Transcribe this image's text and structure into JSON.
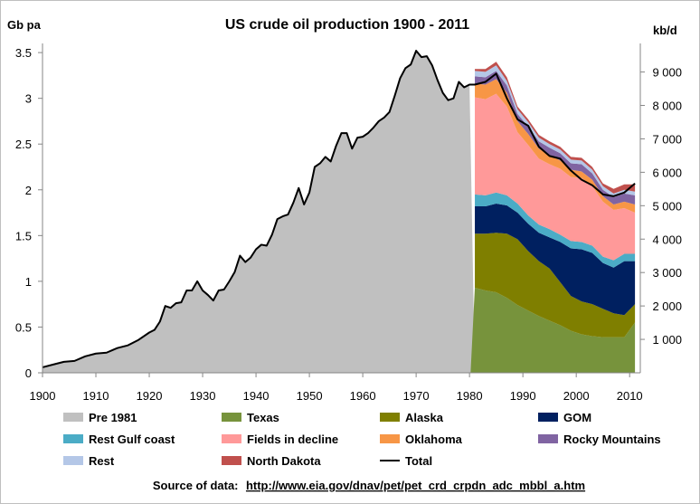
{
  "chart_data": {
    "type": "area",
    "title": "US crude oil production 1900 - 2011",
    "ylabel_left": "Gb pa",
    "ylabel_right": "kb/d",
    "xlim": [
      1900,
      2012
    ],
    "ylim": [
      0,
      3.6
    ],
    "y2lim": [
      0,
      9855
    ],
    "x_ticks": [
      "1900",
      "1910",
      "1920",
      "1930",
      "1940",
      "1950",
      "1960",
      "1970",
      "1980",
      "1990",
      "2000",
      "2010"
    ],
    "y_ticks": [
      "0",
      "0.5",
      "1",
      "1.5",
      "2",
      "2.5",
      "3",
      "3.5"
    ],
    "y2_ticks": [
      "1 000",
      "2 000",
      "3 000",
      "4 000",
      "5 000",
      "6 000",
      "7 000",
      "8 000",
      "9 000"
    ],
    "grid": false,
    "legend_position": "bottom",
    "stack_years": [
      1981,
      1983,
      1985,
      1987,
      1989,
      1991,
      1993,
      1995,
      1997,
      1999,
      2001,
      2003,
      2005,
      2007,
      2009,
      2011
    ],
    "series": [
      {
        "name": "Pre 1981",
        "color": "#c0c0c0",
        "x": [
          1900,
          1902,
          1904,
          1906,
          1908,
          1910,
          1912,
          1914,
          1916,
          1918,
          1920,
          1921,
          1922,
          1923,
          1924,
          1925,
          1926,
          1927,
          1928,
          1929,
          1930,
          1931,
          1932,
          1933,
          1934,
          1935,
          1936,
          1937,
          1938,
          1939,
          1940,
          1941,
          1942,
          1943,
          1944,
          1945,
          1946,
          1947,
          1948,
          1949,
          1950,
          1951,
          1952,
          1953,
          1954,
          1955,
          1956,
          1957,
          1958,
          1959,
          1960,
          1961,
          1962,
          1963,
          1964,
          1965,
          1966,
          1967,
          1968,
          1969,
          1970,
          1971,
          1972,
          1973,
          1974,
          1975,
          1976,
          1977,
          1978,
          1979,
          1980
        ],
        "values": [
          0.06,
          0.09,
          0.12,
          0.13,
          0.18,
          0.21,
          0.22,
          0.27,
          0.3,
          0.36,
          0.44,
          0.47,
          0.56,
          0.73,
          0.71,
          0.76,
          0.77,
          0.9,
          0.9,
          1.0,
          0.9,
          0.85,
          0.79,
          0.9,
          0.91,
          1.0,
          1.1,
          1.28,
          1.21,
          1.26,
          1.35,
          1.4,
          1.39,
          1.51,
          1.68,
          1.71,
          1.73,
          1.86,
          2.02,
          1.84,
          1.97,
          2.25,
          2.29,
          2.36,
          2.31,
          2.48,
          2.62,
          2.62,
          2.45,
          2.57,
          2.58,
          2.62,
          2.68,
          2.75,
          2.79,
          2.85,
          3.03,
          3.22,
          3.33,
          3.37,
          3.52,
          3.45,
          3.46,
          3.36,
          3.2,
          3.06,
          2.98,
          3.0,
          3.18,
          3.12,
          3.15
        ]
      },
      {
        "name": "Texas",
        "color": "#77933c",
        "values": [
          0.93,
          0.9,
          0.88,
          0.82,
          0.74,
          0.68,
          0.62,
          0.57,
          0.52,
          0.46,
          0.42,
          0.4,
          0.39,
          0.39,
          0.39,
          0.55
        ]
      },
      {
        "name": "Alaska",
        "color": "#7f7f00",
        "values": [
          0.59,
          0.62,
          0.65,
          0.7,
          0.72,
          0.65,
          0.6,
          0.57,
          0.47,
          0.38,
          0.36,
          0.35,
          0.31,
          0.26,
          0.24,
          0.2
        ]
      },
      {
        "name": "GOM",
        "color": "#002060",
        "values": [
          0.3,
          0.3,
          0.32,
          0.31,
          0.29,
          0.3,
          0.31,
          0.34,
          0.44,
          0.52,
          0.57,
          0.56,
          0.5,
          0.5,
          0.59,
          0.47
        ]
      },
      {
        "name": "Rest Gulf coast",
        "color": "#4bacc6",
        "values": [
          0.13,
          0.12,
          0.12,
          0.11,
          0.1,
          0.09,
          0.09,
          0.09,
          0.08,
          0.08,
          0.08,
          0.08,
          0.07,
          0.08,
          0.08,
          0.08
        ]
      },
      {
        "name": "Fields in decline",
        "color": "#ff9999",
        "values": [
          1.06,
          1.05,
          1.08,
          0.97,
          0.78,
          0.77,
          0.72,
          0.71,
          0.72,
          0.7,
          0.7,
          0.65,
          0.6,
          0.55,
          0.5,
          0.45
        ]
      },
      {
        "name": "Oklahoma",
        "color": "#f79646",
        "values": [
          0.15,
          0.16,
          0.16,
          0.15,
          0.12,
          0.12,
          0.11,
          0.1,
          0.09,
          0.08,
          0.07,
          0.07,
          0.06,
          0.06,
          0.07,
          0.09
        ]
      },
      {
        "name": "Rocky Mountains",
        "color": "#8064a2",
        "values": [
          0.08,
          0.08,
          0.09,
          0.08,
          0.08,
          0.08,
          0.08,
          0.08,
          0.08,
          0.07,
          0.08,
          0.07,
          0.07,
          0.08,
          0.09,
          0.1
        ]
      },
      {
        "name": "Rest",
        "color": "#b4c7e7",
        "values": [
          0.06,
          0.06,
          0.06,
          0.05,
          0.05,
          0.05,
          0.04,
          0.04,
          0.04,
          0.04,
          0.04,
          0.04,
          0.04,
          0.04,
          0.04,
          0.04
        ]
      },
      {
        "name": "North Dakota",
        "color": "#c0504d",
        "values": [
          0.02,
          0.03,
          0.04,
          0.04,
          0.03,
          0.03,
          0.03,
          0.03,
          0.03,
          0.03,
          0.03,
          0.03,
          0.03,
          0.05,
          0.06,
          0.08
        ]
      },
      {
        "name": "Total",
        "color": "#000000",
        "x": [
          1900,
          1902,
          1904,
          1906,
          1908,
          1910,
          1912,
          1914,
          1916,
          1918,
          1920,
          1921,
          1922,
          1923,
          1924,
          1925,
          1926,
          1927,
          1928,
          1929,
          1930,
          1931,
          1932,
          1933,
          1934,
          1935,
          1936,
          1937,
          1938,
          1939,
          1940,
          1941,
          1942,
          1943,
          1944,
          1945,
          1946,
          1947,
          1948,
          1949,
          1950,
          1951,
          1952,
          1953,
          1954,
          1955,
          1956,
          1957,
          1958,
          1959,
          1960,
          1961,
          1962,
          1963,
          1964,
          1965,
          1966,
          1967,
          1968,
          1969,
          1970,
          1971,
          1972,
          1973,
          1974,
          1975,
          1976,
          1977,
          1978,
          1979,
          1980,
          1981,
          1983,
          1985,
          1987,
          1989,
          1991,
          1993,
          1995,
          1997,
          1999,
          2001,
          2003,
          2005,
          2007,
          2009,
          2011
        ],
        "values": [
          0.06,
          0.09,
          0.12,
          0.13,
          0.18,
          0.21,
          0.22,
          0.27,
          0.3,
          0.36,
          0.44,
          0.47,
          0.56,
          0.73,
          0.71,
          0.76,
          0.77,
          0.9,
          0.9,
          1.0,
          0.9,
          0.85,
          0.79,
          0.9,
          0.91,
          1.0,
          1.1,
          1.28,
          1.21,
          1.26,
          1.35,
          1.4,
          1.39,
          1.51,
          1.68,
          1.71,
          1.73,
          1.86,
          2.02,
          1.84,
          1.97,
          2.25,
          2.29,
          2.36,
          2.31,
          2.48,
          2.62,
          2.62,
          2.45,
          2.57,
          2.58,
          2.62,
          2.68,
          2.75,
          2.79,
          2.85,
          3.03,
          3.22,
          3.33,
          3.37,
          3.52,
          3.45,
          3.46,
          3.36,
          3.2,
          3.06,
          2.98,
          3.0,
          3.18,
          3.12,
          3.15,
          3.15,
          3.18,
          3.27,
          3.0,
          2.77,
          2.7,
          2.47,
          2.37,
          2.34,
          2.21,
          2.11,
          2.05,
          1.95,
          1.93,
          1.97,
          2.07
        ]
      }
    ],
    "source_label": "Source of data:",
    "source_url": "http://www.eia.gov/dnav/pet/pet_crd_crpdn_adc_mbbl_a.htm"
  }
}
